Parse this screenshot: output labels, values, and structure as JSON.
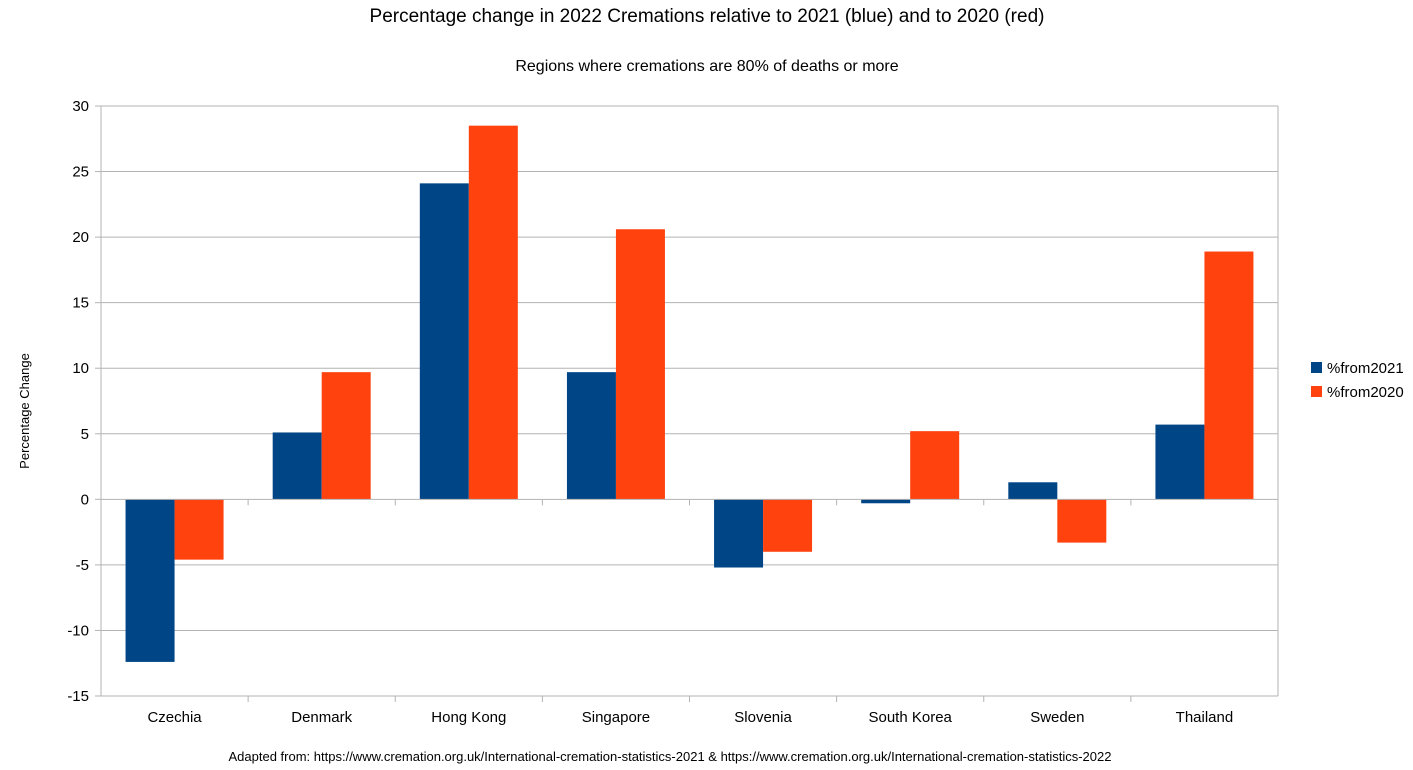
{
  "chart_data": {
    "type": "bar",
    "title": "Percentage change in 2022 Cremations relative to 2021 (blue) and to 2020 (red)",
    "subtitle": "Regions where cremations are 80% of deaths or more",
    "xlabel": "",
    "ylabel": "Percentage Change",
    "ylim": [
      -15,
      30
    ],
    "ytick_step": 5,
    "grid": true,
    "legend_position": "right",
    "categories": [
      "Czechia",
      "Denmark",
      "Hong Kong",
      "Singapore",
      "Slovenia",
      "South Korea",
      "Sweden",
      "Thailand"
    ],
    "series": [
      {
        "name": "%from2021",
        "color": "#004586",
        "values": [
          -12.4,
          5.1,
          24.1,
          9.7,
          -5.2,
          -0.3,
          1.3,
          5.7
        ]
      },
      {
        "name": "%from2020",
        "color": "#ff420e",
        "values": [
          -4.6,
          9.7,
          28.5,
          20.6,
          -4.0,
          5.2,
          -3.3,
          18.9
        ]
      }
    ],
    "source_note": "Adapted from: https://www.cremation.org.uk/International-cremation-statistics-2021 & https://www.cremation.org.uk/International-cremation-statistics-2022"
  }
}
